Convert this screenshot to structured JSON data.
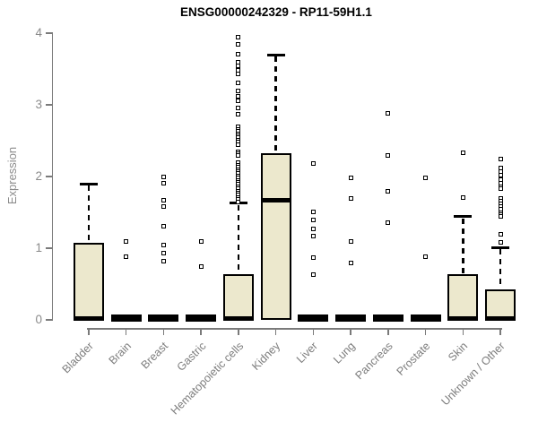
{
  "colors": {
    "box_fill": "#ece8cd",
    "box_border": "#000000",
    "axis": "#7a7a7a",
    "tick_label": "#8a8a8a",
    "title": "#000000"
  },
  "chart_data": {
    "type": "boxplot",
    "title": "ENSG00000242329 - RP11-59H1.1",
    "xlabel": "",
    "ylabel": "Expression",
    "ylim": [
      0,
      4
    ],
    "y_ticks": [
      0,
      1,
      2,
      3,
      4
    ],
    "grid": false,
    "legend": "none",
    "categories": [
      "Bladder",
      "Brain",
      "Breast",
      "Gastric",
      "Hematopoietic cells",
      "Kidney",
      "Liver",
      "Lung",
      "Pancreas",
      "Prostate",
      "Skin",
      "Unknown / Other"
    ],
    "series": [
      {
        "name": "Bladder",
        "q1": 0,
        "median": 0.02,
        "q3": 1.08,
        "whisker_low": 0,
        "whisker_high": 1.9,
        "outliers": []
      },
      {
        "name": "Brain",
        "q1": 0,
        "median": 0.02,
        "q3": 0.03,
        "whisker_low": 0,
        "whisker_high": 0.03,
        "outliers": [
          1.1,
          0.88
        ]
      },
      {
        "name": "Breast",
        "q1": 0,
        "median": 0.02,
        "q3": 0.03,
        "whisker_low": 0,
        "whisker_high": 0.03,
        "outliers": [
          2.0,
          1.91,
          1.67,
          1.58,
          1.31,
          1.05,
          0.93,
          0.82
        ]
      },
      {
        "name": "Gastric",
        "q1": 0,
        "median": 0.02,
        "q3": 0.03,
        "whisker_low": 0,
        "whisker_high": 0.03,
        "outliers": [
          1.09,
          0.75
        ]
      },
      {
        "name": "Hematopoietic cells",
        "q1": 0,
        "median": 0.02,
        "q3": 0.64,
        "whisker_low": 0,
        "whisker_high": 1.63,
        "outliers": [
          3.94,
          3.85,
          3.71,
          3.6,
          3.54,
          3.48,
          3.43,
          3.31,
          3.19,
          3.12,
          3.06,
          2.96,
          2.87,
          2.69,
          2.66,
          2.63,
          2.6,
          2.57,
          2.54,
          2.51,
          2.48,
          2.45,
          2.35,
          2.32,
          2.29,
          2.19,
          2.16,
          2.13,
          2.1,
          2.07,
          2.04,
          2.01,
          1.98,
          1.95,
          1.92,
          1.89,
          1.86,
          1.83,
          1.8,
          1.77,
          1.74,
          1.71,
          1.68,
          1.65
        ]
      },
      {
        "name": "Kidney",
        "q1": 0,
        "median": 1.67,
        "q3": 2.32,
        "whisker_low": 0,
        "whisker_high": 3.7,
        "outliers": []
      },
      {
        "name": "Liver",
        "q1": 0,
        "median": 0.02,
        "q3": 0.03,
        "whisker_low": 0,
        "whisker_high": 0.03,
        "outliers": [
          2.18,
          1.51,
          1.39,
          1.27,
          1.17,
          0.87,
          0.63
        ]
      },
      {
        "name": "Lung",
        "q1": 0,
        "median": 0.02,
        "q3": 0.03,
        "whisker_low": 0,
        "whisker_high": 0.03,
        "outliers": [
          1.98,
          1.7,
          1.09,
          0.8
        ]
      },
      {
        "name": "Pancreas",
        "q1": 0,
        "median": 0.02,
        "q3": 0.03,
        "whisker_low": 0,
        "whisker_high": 0.03,
        "outliers": [
          2.88,
          2.29,
          1.8,
          1.36
        ]
      },
      {
        "name": "Prostate",
        "q1": 0,
        "median": 0.02,
        "q3": 0.03,
        "whisker_low": 0,
        "whisker_high": 0.03,
        "outliers": [
          1.98,
          0.88
        ]
      },
      {
        "name": "Skin",
        "q1": 0,
        "median": 0.02,
        "q3": 0.64,
        "whisker_low": 0,
        "whisker_high": 1.44,
        "outliers": [
          2.33,
          1.71
        ]
      },
      {
        "name": "Unknown / Other",
        "q1": 0,
        "median": 0.02,
        "q3": 0.42,
        "whisker_low": 0,
        "whisker_high": 1.01,
        "outliers": [
          2.25,
          2.12,
          2.07,
          2.02,
          1.96,
          1.91,
          1.86,
          1.83,
          1.69,
          1.66,
          1.62,
          1.58,
          1.54,
          1.5,
          1.47,
          1.44,
          1.2,
          1.08
        ]
      }
    ]
  }
}
